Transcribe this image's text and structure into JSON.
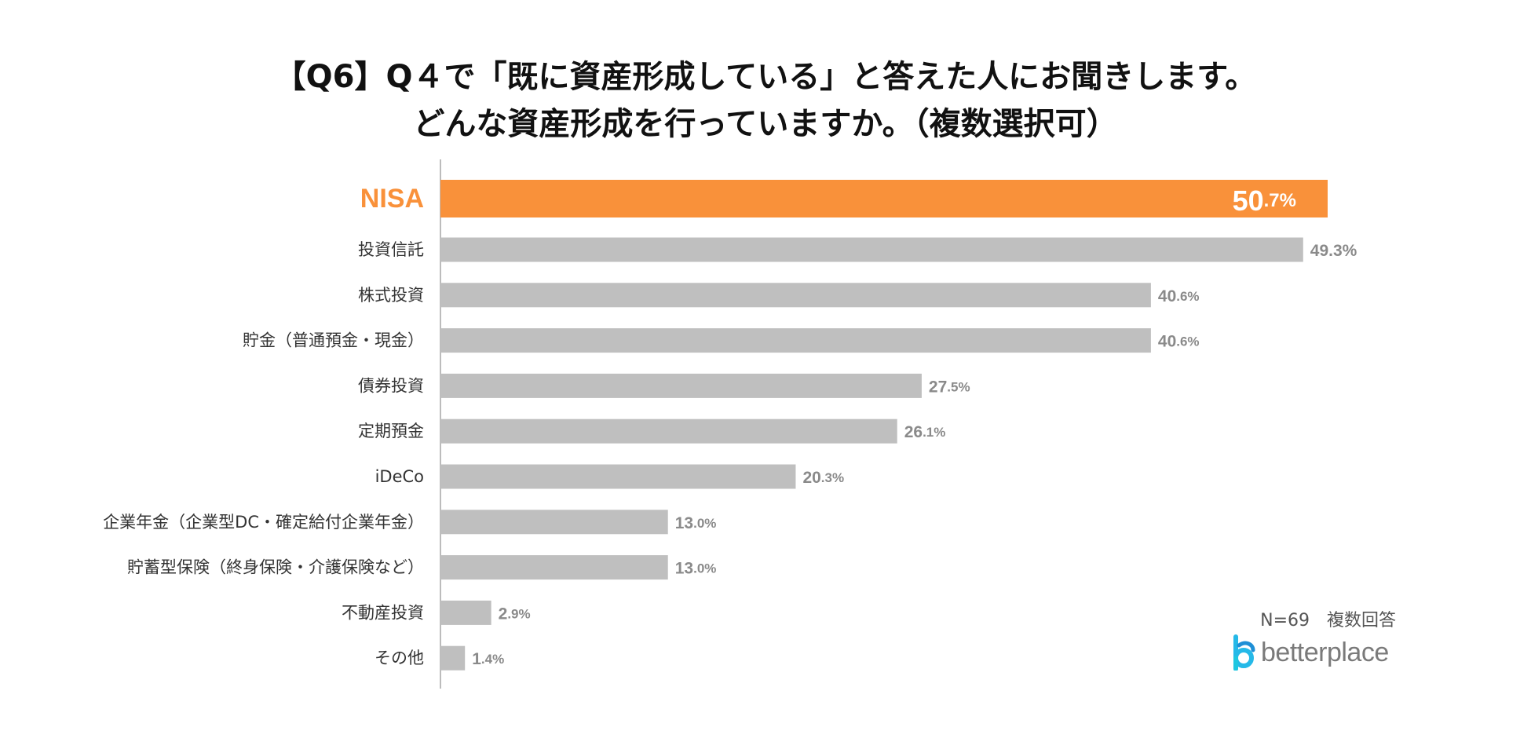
{
  "title": {
    "line1": "【Q6】Q４で「既に資産形成している」と答えた人にお聞きします。",
    "line2": "どんな資産形成を行っていますか。（複数選択可）"
  },
  "note": "N=69　複数回答",
  "logo": {
    "text": "betterplace",
    "icon": "betterplace-logo-icon"
  },
  "colors": {
    "highlight": "#f9913a",
    "bar": "#bfbfbf",
    "axis": "#a6a6a6",
    "value_label": "#8a8a8a",
    "logo_mark": "#25b9e8"
  },
  "chart_data": {
    "type": "bar",
    "orientation": "horizontal",
    "categories": [
      "NISA",
      "投資信託",
      "株式投資",
      "貯金（普通預金・現金）",
      "債券投資",
      "定期預金",
      "iDeCo",
      "企業年金（企業型DC・確定給付企業年金）",
      "貯蓄型保険（終身保険・介護保険など）",
      "不動産投資",
      "その他"
    ],
    "values": [
      50.7,
      49.3,
      40.6,
      40.6,
      27.5,
      26.1,
      20.3,
      13.0,
      13.0,
      2.9,
      1.4
    ],
    "value_labels": [
      {
        "int": "50",
        "dec": ".7%"
      },
      {
        "int": "49.3%",
        "dec": ""
      },
      {
        "int": "40",
        "dec": ".6%"
      },
      {
        "int": "40",
        "dec": ".6%"
      },
      {
        "int": "27",
        "dec": ".5%"
      },
      {
        "int": "26",
        "dec": ".1%"
      },
      {
        "int": "20",
        "dec": ".3%"
      },
      {
        "int": "13",
        "dec": ".0%"
      },
      {
        "int": "13",
        "dec": ".0%"
      },
      {
        "int": "2",
        "dec": ".9%"
      },
      {
        "int": "1",
        "dec": ".4%"
      }
    ],
    "highlight_index": 0,
    "unit": "%",
    "xlim": [
      0,
      50.7
    ],
    "grid": false,
    "legend": "none"
  }
}
